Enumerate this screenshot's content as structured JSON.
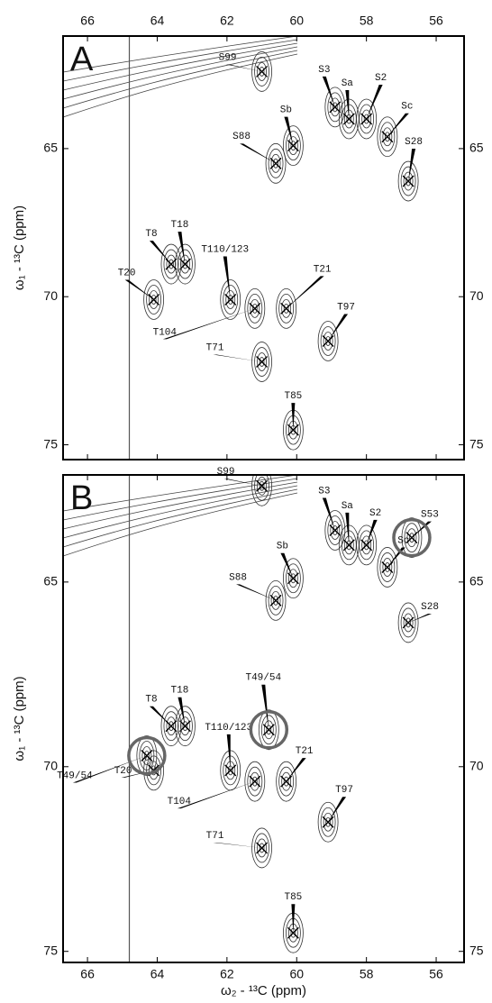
{
  "chart_data": [
    {
      "type": "scatter",
      "panel_label": "A",
      "y_label": "ω₁ - ¹³C (ppm)",
      "xlim": [
        66.7,
        55.2
      ],
      "ylim": [
        61.2,
        75.5
      ],
      "xticks": [
        66,
        64,
        62,
        60,
        58,
        56
      ],
      "yticks": [
        65,
        70,
        75
      ],
      "point_labels": [
        "S99",
        "S3",
        "Sa",
        "S2",
        "Sc",
        "S88",
        "Sb",
        "S28",
        "T18",
        "T8",
        "T20",
        "T110/123",
        "T104",
        "T21",
        "T97",
        "T71",
        "T85"
      ],
      "x": [
        61.0,
        58.9,
        58.5,
        58.0,
        57.4,
        60.6,
        60.1,
        56.8,
        63.2,
        63.6,
        64.1,
        61.9,
        61.2,
        60.3,
        59.1,
        61.0,
        60.1
      ],
      "values": [
        62.4,
        63.6,
        64.0,
        64.0,
        64.6,
        65.5,
        64.9,
        66.1,
        68.9,
        68.9,
        70.1,
        70.1,
        70.4,
        70.4,
        71.5,
        72.2,
        74.5
      ],
      "circled": []
    },
    {
      "type": "scatter",
      "panel_label": "B",
      "y_label": "ω₁ - ¹³C (ppm)",
      "x_label": "ω₂ - ¹³C (ppm)",
      "xlim": [
        66.7,
        55.2
      ],
      "ylim": [
        62.1,
        75.3
      ],
      "xticks": [
        66,
        64,
        62,
        60,
        58,
        56
      ],
      "yticks": [
        65,
        70,
        75
      ],
      "point_labels": [
        "S99",
        "S3",
        "Sa",
        "S2",
        "Sc",
        "S88",
        "Sb",
        "S28",
        "T18",
        "T8",
        "T20",
        "T110/123",
        "T104",
        "T21",
        "T97",
        "T71",
        "T85",
        "S53",
        "T49/54",
        "T49/54"
      ],
      "x": [
        61.0,
        58.9,
        58.5,
        58.0,
        57.4,
        60.6,
        60.1,
        56.8,
        63.2,
        63.6,
        64.1,
        61.9,
        61.2,
        60.3,
        59.1,
        61.0,
        60.1,
        56.7,
        64.3,
        60.8
      ],
      "values": [
        62.4,
        63.6,
        64.0,
        64.0,
        64.6,
        65.5,
        64.9,
        66.1,
        68.9,
        68.9,
        70.1,
        70.1,
        70.4,
        70.4,
        71.5,
        72.2,
        74.5,
        63.8,
        69.7,
        69.0
      ],
      "circled": [
        17,
        18,
        19
      ]
    }
  ]
}
